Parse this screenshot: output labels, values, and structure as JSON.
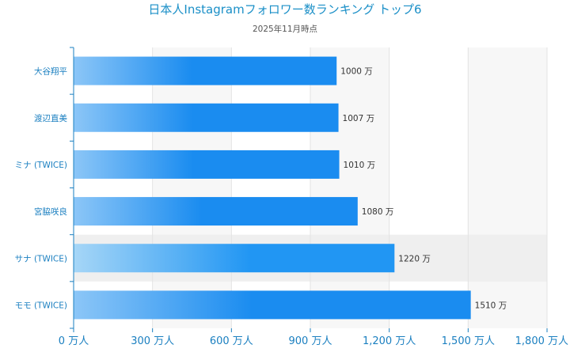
{
  "chart_data": {
    "type": "bar",
    "orientation": "horizontal",
    "title": "日本人Instagramフォロワー数ランキング トップ6",
    "subtitle": "2025年11月時点",
    "categories": [
      "大谷翔平",
      "渡辺直美",
      "ミナ (TWICE)",
      "宮脇咲良",
      "サナ (TWICE)",
      "モモ (TWICE)"
    ],
    "values": [
      1000,
      1007,
      1010,
      1080,
      1220,
      1510
    ],
    "value_labels": [
      "1000 万",
      "1007 万",
      "1010 万",
      "1080 万",
      "1220 万",
      "1510 万"
    ],
    "xlim": [
      0,
      1800
    ],
    "x_ticks": [
      0,
      300,
      600,
      900,
      1200,
      1500,
      1800
    ],
    "x_tick_labels": [
      "0 万人",
      "300 万人",
      "600 万人",
      "900 万人",
      "1,200 万人",
      "1,500 万人",
      "1,800 万人"
    ],
    "grid": true,
    "highlighted_index": 4,
    "colors": {
      "bar_start": "#8cc6f7",
      "bar_end": "#1a8cf0",
      "highlight_bar_start": "#a6d6f7",
      "highlight_bar_end": "#2196f3",
      "band_light": "#f7f7f7",
      "band_highlight": "#efefef",
      "axis": "#1a7fc0"
    }
  }
}
